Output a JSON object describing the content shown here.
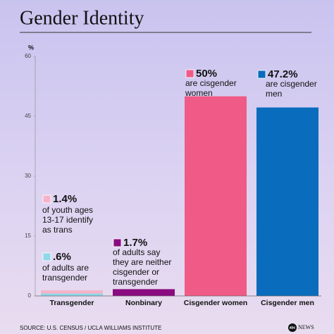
{
  "chart_data": {
    "type": "bar",
    "title": "Gender Identity",
    "y_unit": "%",
    "categories": [
      "Transgender",
      "Nonbinary",
      "Cisgender women",
      "Cisgender men"
    ],
    "series": [
      {
        "color": "#f6b3c9",
        "values": [
          1.4,
          null,
          null,
          null
        ],
        "value_labels": [
          "1.4%",
          null,
          null,
          null
        ],
        "note": [
          "of youth ages",
          "13-17 identify",
          "as trans"
        ]
      },
      {
        "color": "#8ed8ea",
        "values": [
          0.6,
          null,
          null,
          null
        ],
        "value_labels": [
          ".6%",
          null,
          null,
          null
        ],
        "note": [
          "of adults are",
          "transgender"
        ]
      },
      {
        "color": "#8a0b7f",
        "values": [
          null,
          1.7,
          null,
          null
        ],
        "value_labels": [
          null,
          "1.7%",
          null,
          null
        ],
        "note": [
          "of adults say",
          "they are neither",
          "cisgender or",
          "transgender"
        ]
      },
      {
        "color": "#f05a86",
        "values": [
          null,
          null,
          50,
          null
        ],
        "value_labels": [
          null,
          null,
          "50%",
          null
        ],
        "note": [
          "are cisgender",
          "women"
        ]
      },
      {
        "color": "#0a6cbd",
        "values": [
          null,
          null,
          null,
          47.2
        ],
        "value_labels": [
          null,
          null,
          null,
          "47.2%"
        ],
        "note": [
          "are cisgender",
          "men"
        ]
      }
    ],
    "ylim": [
      0,
      60
    ],
    "yticks": [
      0,
      15,
      30,
      45,
      60
    ],
    "source": "SOURCE: U.S. CENSUS / UCLA WILLIAMS INSTITUTE",
    "logo": {
      "mark": "abc",
      "text": "NEWS"
    }
  }
}
